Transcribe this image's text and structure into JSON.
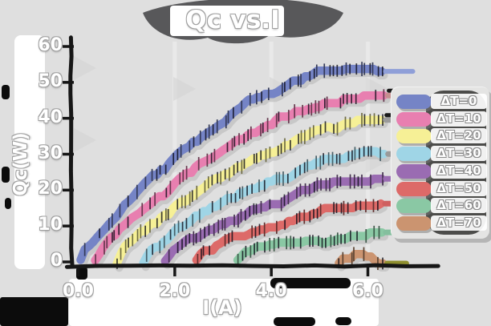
{
  "title": "Qc vs.I",
  "axes": {
    "xlabel": "I(A)",
    "ylabel": "Qc(W)",
    "x_tick_labels": [
      "0.0",
      "2.0",
      "4.0",
      "6.0"
    ],
    "y_tick_labels": [
      "0",
      "10",
      "20",
      "30",
      "40",
      "50",
      "60"
    ]
  },
  "legend": {
    "position": "right",
    "items": [
      {
        "label": "ΔT=0",
        "color": "#7584c6"
      },
      {
        "label": "ΔT=10",
        "color": "#e87fb0"
      },
      {
        "label": "ΔT=20",
        "color": "#f6f096"
      },
      {
        "label": "ΔT=30",
        "color": "#9fd5e6"
      },
      {
        "label": "ΔT=40",
        "color": "#9a6cb2"
      },
      {
        "label": "ΔT=50",
        "color": "#dd6a68"
      },
      {
        "label": "ΔT=60",
        "color": "#8ac8a4"
      },
      {
        "label": "ΔT=70",
        "color": "#cb9470"
      }
    ]
  },
  "style_colors": {
    "background": "#dfdfdf",
    "axis": "#161616",
    "text": "#ffffff",
    "text_outline": "#a0a0a0",
    "shadow_blob": "#58585a",
    "legend_blob": "#4c4c4a"
  },
  "chart_data": {
    "type": "line",
    "title": "Qc vs.I",
    "xlabel": "I(A)",
    "ylabel": "Qc(W)",
    "xlim": [
      0,
      7.4
    ],
    "ylim": [
      0,
      62
    ],
    "x_ticks": [
      0,
      2,
      4,
      6
    ],
    "y_ticks": [
      0,
      10,
      20,
      30,
      40,
      50,
      60
    ],
    "grid": "faint-vertical-majors",
    "legend_position": "right",
    "style": "hand-drawn sketch, very thick strokes with dense vertical tick marks and drop shadows",
    "series": [
      {
        "name": "ΔT=0",
        "color": "#7584c6",
        "cap_color": "#8f9fd8",
        "points": [
          [
            0.05,
            0
          ],
          [
            0.15,
            3
          ],
          [
            0.4,
            7
          ],
          [
            0.7,
            11
          ],
          [
            1,
            16
          ],
          [
            1.5,
            23
          ],
          [
            2,
            28.5
          ],
          [
            2.5,
            34
          ],
          [
            3,
            40
          ],
          [
            3.5,
            44
          ],
          [
            4,
            47
          ],
          [
            4.5,
            50
          ],
          [
            5,
            52.5
          ],
          [
            5.5,
            54
          ],
          [
            6,
            55
          ],
          [
            6.35,
            55
          ]
        ]
      },
      {
        "name": "ΔT=10",
        "color": "#e87fb0",
        "cap_color": "#c58f8f",
        "cap2_color": "#1a1a1a",
        "points": [
          [
            0.35,
            0
          ],
          [
            0.5,
            4
          ],
          [
            0.8,
            7.5
          ],
          [
            1,
            11
          ],
          [
            1.5,
            17
          ],
          [
            2,
            22
          ],
          [
            2.5,
            27
          ],
          [
            3,
            32
          ],
          [
            3.5,
            36
          ],
          [
            4,
            39.5
          ],
          [
            4.5,
            42.5
          ],
          [
            5,
            44.5
          ],
          [
            5.5,
            46
          ],
          [
            6,
            47
          ],
          [
            6.35,
            47.5
          ]
        ]
      },
      {
        "name": "ΔT=20",
        "color": "#f6f096",
        "cap_color": "#9a9a9a",
        "cap2_color": "#1a1a1a",
        "points": [
          [
            0.8,
            0
          ],
          [
            0.95,
            4
          ],
          [
            1.2,
            6.5
          ],
          [
            1.5,
            10
          ],
          [
            2,
            15
          ],
          [
            2.5,
            19
          ],
          [
            3,
            23.5
          ],
          [
            3.5,
            27
          ],
          [
            4,
            30.5
          ],
          [
            4.5,
            33.5
          ],
          [
            5,
            36
          ],
          [
            5.5,
            38
          ],
          [
            6,
            39
          ],
          [
            6.35,
            39.5
          ]
        ]
      },
      {
        "name": "ΔT=30",
        "color": "#9fd5e6",
        "cap_color": "#9a9a9a",
        "points": [
          [
            1.35,
            0
          ],
          [
            1.5,
            3.5
          ],
          [
            1.8,
            6
          ],
          [
            2,
            8.5
          ],
          [
            2.5,
            13
          ],
          [
            3,
            16.5
          ],
          [
            3.5,
            19.5
          ],
          [
            4,
            22
          ],
          [
            4.5,
            25
          ],
          [
            5,
            27.5
          ],
          [
            5.5,
            29.5
          ],
          [
            6,
            31
          ],
          [
            6.35,
            31.5
          ]
        ]
      },
      {
        "name": "ΔT=40",
        "color": "#9a6cb2",
        "cap_color": "#9a6cb2",
        "points": [
          [
            1.8,
            0
          ],
          [
            1.95,
            3
          ],
          [
            2.2,
            5
          ],
          [
            2.5,
            7
          ],
          [
            3,
            11
          ],
          [
            3.5,
            13.5
          ],
          [
            4,
            16
          ],
          [
            4.5,
            18.5
          ],
          [
            5,
            20.5
          ],
          [
            5.5,
            22.5
          ],
          [
            6,
            23.5
          ],
          [
            6.35,
            23.5
          ]
        ]
      },
      {
        "name": "ΔT=50",
        "color": "#dd6a68",
        "cap_color": "#cf5f5f",
        "points": [
          [
            2.45,
            0
          ],
          [
            2.6,
            3
          ],
          [
            3,
            5.5
          ],
          [
            3.6,
            8
          ],
          [
            4,
            9.5
          ],
          [
            4.5,
            11.5
          ],
          [
            5,
            13
          ],
          [
            5.5,
            14.5
          ],
          [
            6,
            15.3
          ],
          [
            6.35,
            15.5
          ]
        ]
      },
      {
        "name": "ΔT=60",
        "color": "#8ac8a4",
        "cap_color": "#84bf9e",
        "points": [
          [
            3.3,
            0
          ],
          [
            3.45,
            2.5
          ],
          [
            3.8,
            4
          ],
          [
            4.2,
            5
          ],
          [
            4.7,
            6
          ],
          [
            5.2,
            6.7
          ],
          [
            5.7,
            7.2
          ],
          [
            6,
            7.3
          ],
          [
            6.35,
            7.3
          ]
        ]
      },
      {
        "name": "ΔT=70",
        "color": "#cb9470",
        "cap_color": "#8f8f2e",
        "points": [
          [
            5.4,
            0
          ],
          [
            5.5,
            1.5
          ],
          [
            5.7,
            2.3
          ],
          [
            5.9,
            2
          ],
          [
            6.1,
            1
          ],
          [
            6.25,
            0.4
          ],
          [
            6.35,
            0.2
          ]
        ]
      }
    ]
  }
}
